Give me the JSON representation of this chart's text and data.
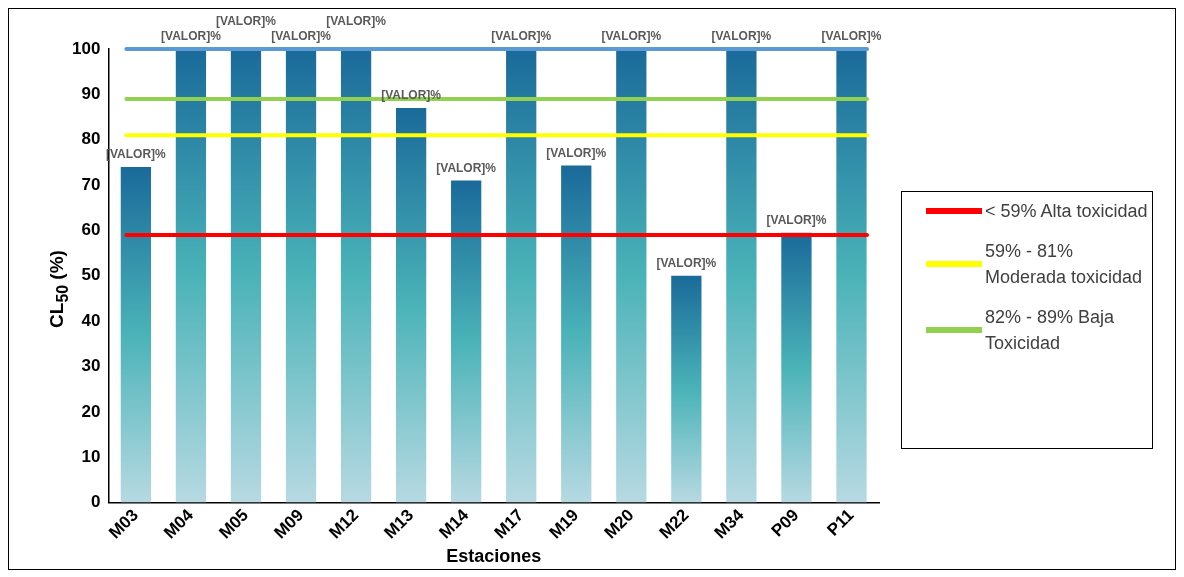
{
  "chart_data": {
    "type": "bar",
    "xlabel": "Estaciones",
    "ylabel": "CL$_{50}$ (%)",
    "categories": [
      "M03",
      "M04",
      "M05",
      "M09",
      "M12",
      "M13",
      "M14",
      "M17",
      "M19",
      "M20",
      "M22",
      "M34",
      "P09",
      "P11"
    ],
    "values": [
      74,
      100,
      100,
      100,
      100,
      87,
      71,
      100,
      74.3,
      100,
      50,
      100,
      59.5,
      100
    ],
    "value_labels": [
      "[VALOR]%",
      "[VALOR]%",
      "[VALOR]%",
      "[VALOR]%",
      "[VALOR]%",
      "[VALOR]%",
      "[VALOR]%",
      "[VALOR]%",
      "[VALOR]%",
      "[VALOR]%",
      "[VALOR]%",
      "[VALOR]%",
      "[VALOR]%",
      "[VALOR]%"
    ],
    "color": "#1a6a9a",
    "ylim": [
      0,
      100
    ],
    "yticks": [
      0,
      10,
      20,
      30,
      40,
      50,
      60,
      70,
      80,
      90,
      100
    ],
    "ref_lines": [
      {
        "axis": "y",
        "value": 59,
        "label": "< 59% Alta toxicidad",
        "color": "#ff0000"
      },
      {
        "axis": "y",
        "value": 81,
        "label": "59% - 81% Moderada toxicidad",
        "color": "#ffff00"
      },
      {
        "axis": "y",
        "value": 89,
        "label": "82% - 89% Baja Toxicidad",
        "color": "#92d050"
      },
      {
        "axis": "y",
        "value": 100,
        "label": null,
        "color": "#5b9bd5"
      }
    ],
    "grid": false,
    "legend": "right"
  }
}
